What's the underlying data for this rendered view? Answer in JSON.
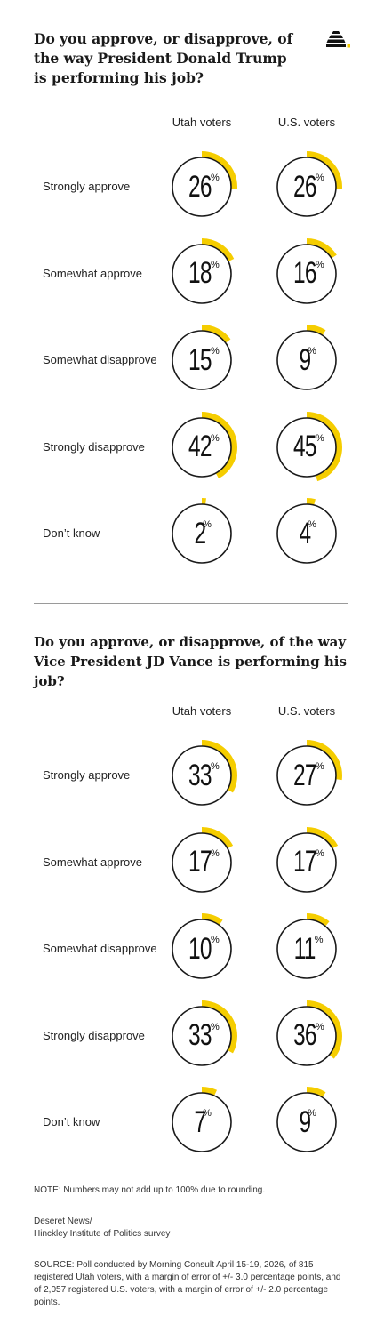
{
  "colors": {
    "accent": "#f5cd00",
    "ring": "#1a1a1a",
    "text": "#1f1f1f"
  },
  "logo_icon": "beehive-icon",
  "chart_data": [
    {
      "type": "donut-grid",
      "title": "Do you approve, or disapprove, of the way President Donald Trump is performing his job?",
      "columns": [
        "Utah voters",
        "U.S. voters"
      ],
      "rows": [
        "Strongly approve",
        "Somewhat approve",
        "Somewhat disapprove",
        "Strongly disapprove",
        "Don’t know"
      ],
      "unit": "%",
      "series": [
        {
          "name": "Utah voters",
          "values": [
            26,
            18,
            15,
            42,
            2
          ]
        },
        {
          "name": "U.S. voters",
          "values": [
            26,
            16,
            9,
            45,
            4
          ]
        }
      ]
    },
    {
      "type": "donut-grid",
      "title": "Do you approve, or disapprove, of the way Vice President JD Vance is performing his job?",
      "columns": [
        "Utah voters",
        "U.S. voters"
      ],
      "rows": [
        "Strongly approve",
        "Somewhat approve",
        "Somewhat disapprove",
        "Strongly disapprove",
        "Don’t know"
      ],
      "unit": "%",
      "series": [
        {
          "name": "Utah voters",
          "values": [
            33,
            17,
            10,
            33,
            7
          ]
        },
        {
          "name": "U.S. voters",
          "values": [
            27,
            17,
            11,
            36,
            9
          ]
        }
      ]
    }
  ],
  "footer": {
    "note": "NOTE: Numbers may not add up to 100% due to rounding.",
    "credit_line1": "Deseret News/",
    "credit_line2": "Hinckley Institute of Politics survey",
    "source": "SOURCE: Poll conducted by Morning Consult April 15-19, 2026, of 815 registered Utah voters, with a margin of error of +/- 3.0 percentage points, and of 2,057 registered U.S.  voters, with a margin of error of +/- 2.0 percentage points."
  }
}
